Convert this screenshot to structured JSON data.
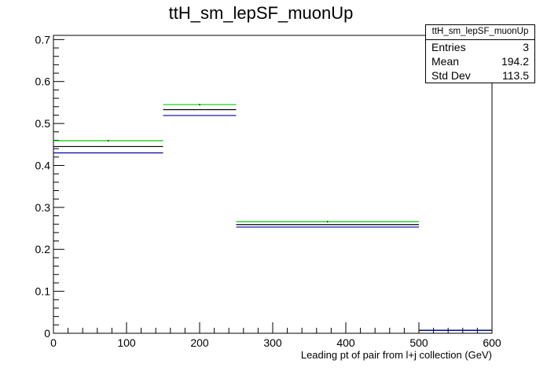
{
  "chart_data": {
    "type": "step",
    "title": "ttH_sm_lepSF_muonUp",
    "xlabel": "Leading pt of pair from l+j collection (GeV)",
    "ylabel": "",
    "xlim": [
      0,
      600
    ],
    "ylim": [
      0,
      0.71
    ],
    "x_ticks": [
      0,
      100,
      200,
      300,
      400,
      500,
      600
    ],
    "y_ticks": [
      0,
      0.1,
      0.2,
      0.3,
      0.4,
      0.5,
      0.6,
      0.7
    ],
    "bin_edges": [
      0,
      150,
      250,
      500,
      600
    ],
    "series": [
      {
        "color": "#00cc00",
        "values": [
          0.459,
          0.545,
          0.266,
          0.007
        ]
      },
      {
        "color": "#000000",
        "values": [
          0.445,
          0.533,
          0.259,
          0.007
        ]
      },
      {
        "color": "#0000aa",
        "values": [
          0.43,
          0.519,
          0.253,
          0.007
        ]
      }
    ],
    "grid": false
  },
  "stats": {
    "title": "ttH_sm_lepSF_muonUp",
    "rows": [
      {
        "label": "Entries",
        "value": "3"
      },
      {
        "label": "Mean",
        "value": "194.2"
      },
      {
        "label": "Std Dev",
        "value": "113.5"
      }
    ]
  }
}
